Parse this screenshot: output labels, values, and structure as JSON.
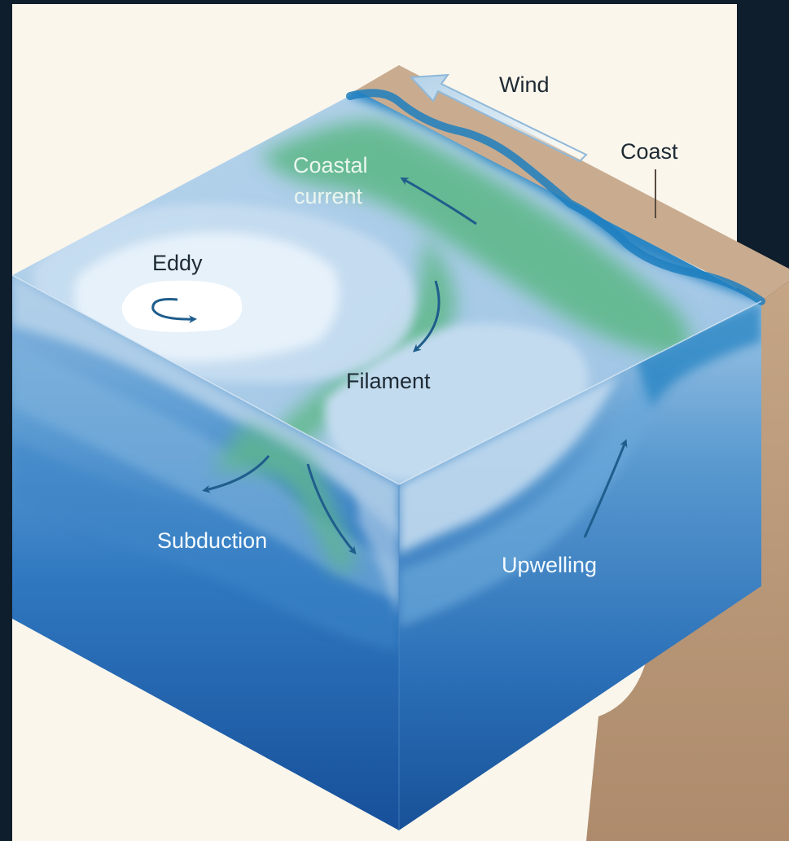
{
  "labels": {
    "wind": "Wind",
    "coast": "Coast",
    "coastal_current_line1": "Coastal",
    "coastal_current_line2": "current",
    "eddy": "Eddy",
    "filament": "Filament",
    "subduction": "Subduction",
    "upwelling": "Upwelling"
  },
  "colors": {
    "frame_background": "#0f1e2c",
    "panel_background": "#faf6ec",
    "land_top": "#c9ac90",
    "land_side": "#b8987a",
    "ocean_light": "#a9cbe6",
    "ocean_mid": "#5d9fd3",
    "ocean_deep": "#1a5da8",
    "filament_green": "#5fb88a",
    "eddy_white": "#f3f8fd",
    "arrow": "#1f5d8c"
  }
}
